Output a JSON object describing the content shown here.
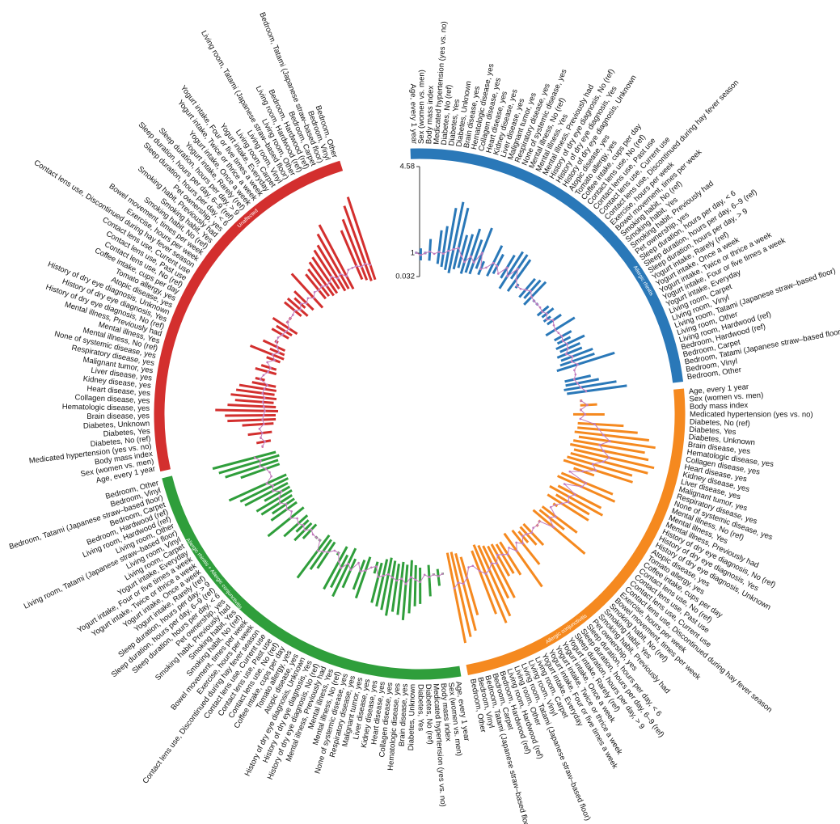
{
  "chart_data": {
    "type": "circular_forest",
    "categories": [
      "Age, every 1 year",
      "Sex (women vs. men)",
      "Body mass index",
      "Medicated hypertension (yes vs. no)",
      "Diabetes, No (ref)",
      "Diabetes, Yes",
      "Diabetes, Unknown",
      "Brain disease, yes",
      "Hematologic disease, yes",
      "Collagen disease, yes",
      "Heart disease, yes",
      "Kidney disease, yes",
      "Liver disease, yes",
      "Malignant tumor, yes",
      "Respiratory disease, yes",
      "None of systemic disease, yes",
      "Mental illness, No (ref)",
      "Mental illness, Yes",
      "Mental illness, Previously had",
      "History of dry eye diagnosis, No (ref)",
      "History of dry eye diagnosis, Yes",
      "History of dry eye diagnosis, Unknown",
      "Atopic disease, yes",
      "Tomato allergy, yes",
      "Coffee intake, cups per day",
      "Contact lens use, No (ref)",
      "Contact lens use, Past use",
      "Contact lens use, Current use",
      "Contact lens use, Discontinued during hay fever season",
      "Exercise, hours per week",
      "Bowel movement, times per week",
      "Smoking habit, No (ref)",
      "Smoking habit, Yes",
      "Smoking habit, Previously had",
      "Pet ownership, yes",
      "Sleep duration, hours per day, < 6",
      "Sleep duration, hours per day, 6–9 (ref)",
      "Sleep duration, hours per day, > 9",
      "Yogurt intake, Rarely (ref)",
      "Yogurt intake, Once a week",
      "Yogurt intake, Twice or thrice a week",
      "Yogurt intake, Four or five times a week",
      "Yogurt intake, Everyday",
      "Living room, Carpet",
      "Living room, Vinyl",
      "Living room, Tatami (Japanese straw–based floor)",
      "Living room, Other",
      "Living room, Hardwood (ref)",
      "Bedroom, Hardwood (ref)",
      "Bedroom, Carpet",
      "Bedroom, Tatami (Japanese straw–based floor)",
      "Bedroom, Vinyl",
      "Bedroom, Other"
    ],
    "ylim": [
      0.032,
      4.58
    ],
    "yticks": [
      0.032,
      1,
      4.58
    ],
    "line_color": "#c27bbd",
    "series": [
      {
        "name": "Allergic rhinitis",
        "color": "#2a78b8",
        "values": [
          1.02,
          0.92,
          1.01,
          1.08,
          1,
          1.1,
          1.05,
          1.2,
          1.3,
          1.4,
          1.1,
          0.9,
          1.2,
          1.0,
          1.5,
          0.85,
          1,
          1.3,
          1.25,
          1,
          1.4,
          1.1,
          1.6,
          1.2,
          1.0,
          1,
          1.1,
          1.2,
          1.05,
          1.0,
          1.0,
          1,
          0.95,
          1.05,
          0.9,
          1.1,
          1,
          0.95,
          1,
          1.05,
          1.0,
          1.1,
          1.05,
          0.9,
          1.1,
          1.0,
          1.2,
          1,
          1,
          0.9,
          1.0,
          1.1,
          1.3
        ],
        "lower": [
          0.98,
          0.7,
          0.96,
          0.7,
          1,
          0.6,
          0.5,
          0.4,
          0.3,
          0.5,
          0.6,
          0.4,
          0.5,
          0.5,
          0.8,
          0.6,
          1,
          0.7,
          0.9,
          1,
          0.9,
          0.5,
          1.1,
          0.6,
          0.9,
          1,
          0.7,
          0.8,
          0.6,
          0.95,
          0.95,
          1,
          0.7,
          0.8,
          0.75,
          0.8,
          1,
          0.5,
          1,
          0.7,
          0.75,
          0.6,
          0.7,
          0.5,
          0.6,
          0.5,
          0.3,
          1,
          1,
          0.5,
          0.5,
          0.4,
          0.5
        ],
        "upper": [
          1.06,
          1.2,
          1.06,
          1.6,
          1,
          2.0,
          2.2,
          3.0,
          3.3,
          3.1,
          2.0,
          2.1,
          2.4,
          2.0,
          2.6,
          1.2,
          1,
          2.1,
          1.8,
          1,
          2.0,
          2.3,
          2.3,
          2.2,
          1.1,
          1,
          1.7,
          1.8,
          1.9,
          1.05,
          1.05,
          1,
          1.3,
          1.4,
          1.1,
          1.5,
          1,
          1.9,
          1,
          1.5,
          1.35,
          1.9,
          1.6,
          1.6,
          2.0,
          2.0,
          2.8,
          1,
          1,
          1.6,
          1.9,
          2.6,
          3.0
        ]
      },
      {
        "name": "Allergic conjunctivitis",
        "color": "#f5891f",
        "values": [
          1.05,
          1.3,
          1.02,
          1.2,
          1,
          1.6,
          1.8,
          2.0,
          2.3,
          1.9,
          2.1,
          2.4,
          2.2,
          1.8,
          2.0,
          1.5,
          1,
          1.8,
          1.7,
          1,
          1.6,
          1.4,
          1.5,
          1.3,
          1.1,
          1,
          1.4,
          1.2,
          1.6,
          1.0,
          1.05,
          1,
          1.1,
          1.0,
          0.95,
          1.2,
          1,
          1.3,
          1,
          1.2,
          1.1,
          1.0,
          1.3,
          1.2,
          1.4,
          1.5,
          1.3,
          1,
          1,
          1.4,
          1.6,
          1.5,
          1.7
        ],
        "lower": [
          1.0,
          1.0,
          0.98,
          0.7,
          1,
          0.9,
          0.9,
          0.8,
          1.0,
          0.8,
          0.7,
          0.9,
          0.8,
          0.7,
          0.6,
          1.1,
          1,
          0.7,
          0.6,
          1,
          0.8,
          0.5,
          0.9,
          0.6,
          1.0,
          1,
          0.7,
          0.7,
          0.5,
          0.95,
          1.0,
          1,
          0.6,
          0.6,
          0.7,
          0.5,
          1,
          0.4,
          1,
          0.6,
          0.6,
          0.5,
          0.5,
          0.4,
          0.3,
          0.2,
          0.4,
          1,
          1,
          0.5,
          0.3,
          0.2,
          0.2
        ],
        "upper": [
          1.1,
          1.7,
          1.06,
          2.0,
          1,
          2.8,
          3.4,
          3.9,
          4.2,
          3.8,
          4.0,
          4.3,
          4.1,
          3.5,
          3.6,
          2.0,
          1,
          3.0,
          3.2,
          1,
          2.8,
          3.0,
          2.5,
          2.6,
          1.2,
          1,
          2.5,
          2.0,
          3.3,
          1.05,
          1.1,
          1,
          1.8,
          1.6,
          1.3,
          2.3,
          1,
          3.1,
          1,
          2.2,
          2.0,
          2.0,
          2.9,
          2.8,
          3.5,
          3.7,
          3.2,
          1,
          1,
          3.0,
          3.6,
          3.8,
          4.0
        ]
      },
      {
        "name": "Allergic rhinitis + Allergic conjunctivitis",
        "color": "#2f9e3b",
        "values": [
          1.02,
          1.1,
          1.01,
          1.1,
          1,
          1.3,
          1.2,
          1.1,
          1.4,
          1.2,
          1.3,
          1.2,
          1.1,
          1.2,
          1.3,
          0.9,
          1,
          1.2,
          1.3,
          1,
          1.4,
          1.2,
          1.5,
          1.3,
          1.0,
          1,
          1.2,
          1.3,
          1.4,
          1.0,
          1.0,
          1,
          0.9,
          1.1,
          1.0,
          1.1,
          1,
          1.2,
          1,
          1.1,
          1.0,
          1.2,
          1.1,
          0.9,
          1.2,
          1.1,
          1.3,
          1,
          1,
          1.1,
          1.3,
          1.2,
          1.4
        ],
        "lower": [
          0.98,
          0.8,
          0.97,
          0.6,
          1,
          0.7,
          0.6,
          0.4,
          0.6,
          0.5,
          0.6,
          0.5,
          0.4,
          0.5,
          0.7,
          0.7,
          1,
          0.6,
          0.8,
          1,
          0.9,
          0.5,
          0.9,
          0.6,
          0.95,
          1,
          0.7,
          0.7,
          0.6,
          0.95,
          0.95,
          1,
          0.6,
          0.7,
          0.7,
          0.6,
          1,
          0.5,
          1,
          0.6,
          0.6,
          0.6,
          0.5,
          0.5,
          0.5,
          0.4,
          0.4,
          1,
          1,
          0.5,
          0.5,
          0.4,
          0.5
        ],
        "upper": [
          1.06,
          1.5,
          1.05,
          1.9,
          1,
          2.2,
          2.3,
          2.6,
          2.9,
          2.7,
          2.6,
          2.8,
          2.6,
          2.5,
          2.4,
          1.2,
          1,
          2.4,
          2.1,
          1,
          2.2,
          2.7,
          2.4,
          2.6,
          1.1,
          1,
          2.0,
          2.2,
          2.8,
          1.05,
          1.05,
          1,
          1.4,
          1.7,
          1.4,
          1.9,
          1,
          2.4,
          1,
          1.9,
          1.7,
          2.1,
          2.2,
          1.7,
          2.5,
          2.6,
          3.0,
          1,
          1,
          2.2,
          2.8,
          3.0,
          3.2
        ]
      },
      {
        "name": "Unaffected",
        "color": "#d32f2e",
        "values": [
          0.98,
          0.85,
          0.99,
          0.9,
          1,
          0.8,
          0.85,
          0.8,
          0.75,
          0.8,
          0.85,
          0.8,
          0.9,
          0.85,
          0.75,
          1.1,
          1,
          0.85,
          0.8,
          1,
          0.75,
          0.9,
          0.7,
          0.85,
          0.98,
          1,
          0.9,
          0.85,
          0.8,
          1.0,
          1.0,
          1,
          1.05,
          0.9,
          1.05,
          0.9,
          1,
          0.85,
          1,
          0.95,
          1.0,
          0.9,
          0.95,
          1.1,
          0.9,
          1.0,
          0.8,
          1,
          1,
          1.0,
          0.9,
          0.95,
          0.85
        ],
        "lower": [
          0.95,
          0.6,
          0.96,
          0.5,
          1,
          0.4,
          0.3,
          0.3,
          0.2,
          0.3,
          0.4,
          0.3,
          0.4,
          0.35,
          0.4,
          0.9,
          1,
          0.5,
          0.55,
          1,
          0.5,
          0.4,
          0.45,
          0.5,
          0.9,
          1,
          0.6,
          0.55,
          0.4,
          0.95,
          0.95,
          1,
          0.7,
          0.5,
          0.8,
          0.5,
          1,
          0.3,
          1,
          0.5,
          0.5,
          0.4,
          0.4,
          0.5,
          0.3,
          0.3,
          0.2,
          1,
          1,
          0.4,
          0.3,
          0.2,
          0.2
        ],
        "upper": [
          1.02,
          1.2,
          1.02,
          1.5,
          1,
          1.7,
          2.3,
          2.4,
          2.8,
          2.3,
          2.0,
          2.2,
          2.0,
          1.9,
          1.4,
          1.3,
          1,
          1.4,
          1.2,
          1,
          1.1,
          1.9,
          1.1,
          1.5,
          1.05,
          1,
          1.4,
          1.3,
          1.6,
          1.05,
          1.05,
          1,
          1.6,
          1.6,
          1.4,
          1.6,
          1,
          2.2,
          1,
          1.8,
          1.9,
          2.1,
          2.2,
          2.4,
          2.5,
          2.9,
          3.2,
          1,
          1,
          2.6,
          3.0,
          3.5,
          3.8
        ]
      }
    ]
  }
}
